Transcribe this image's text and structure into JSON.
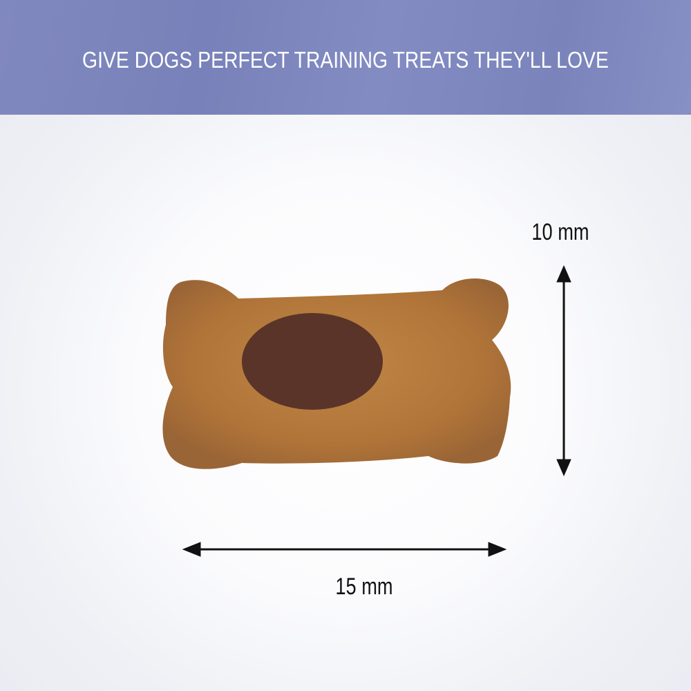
{
  "banner": {
    "headline": "GIVE DOGS PERFECT TRAINING TREATS THEY'LL LOVE",
    "color": "#7d86bd"
  },
  "dimensions": {
    "height_label": "10 mm",
    "width_label": "15 mm"
  },
  "product": {
    "name": "bone-shaped-treat",
    "body_color": "#b37a3c",
    "center_color": "#5a3428"
  }
}
